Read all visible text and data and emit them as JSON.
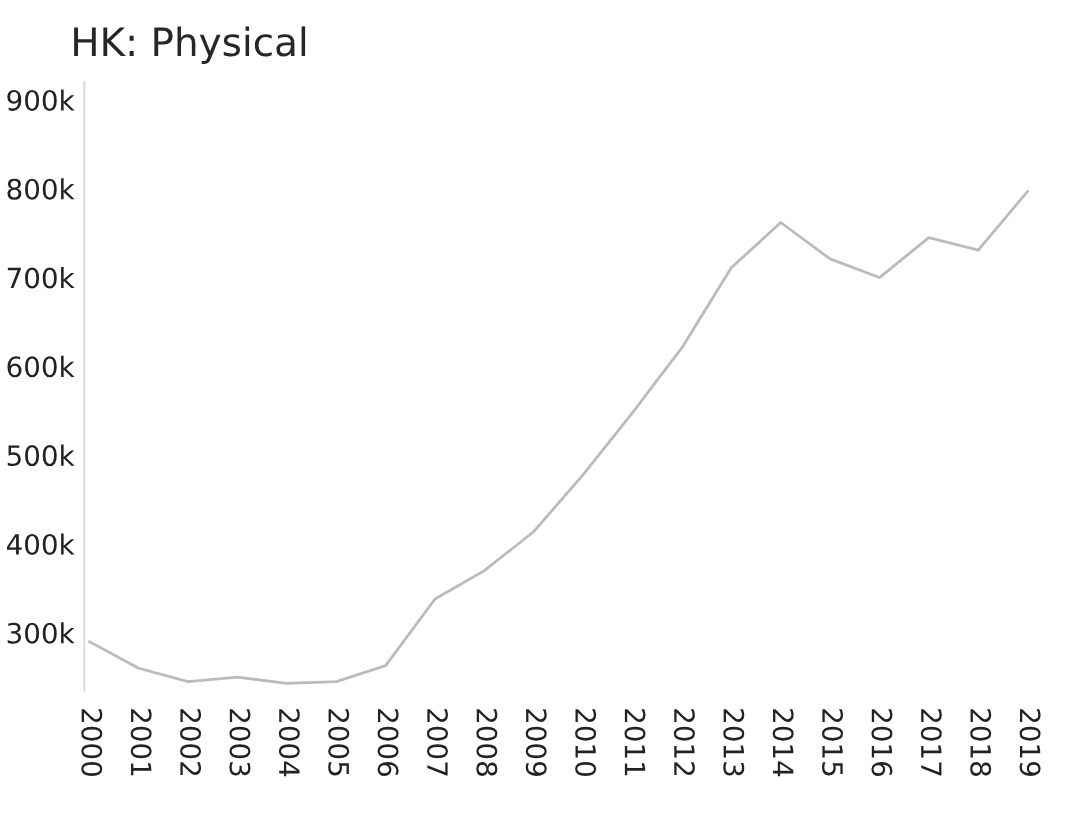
{
  "chart_data": {
    "type": "line",
    "title": "HK: Physical",
    "categories": [
      "2000",
      "2001",
      "2002",
      "2003",
      "2004",
      "2005",
      "2006",
      "2007",
      "2008",
      "2009",
      "2010",
      "2011",
      "2012",
      "2013",
      "2014",
      "2015",
      "2016",
      "2017",
      "2018",
      "2019"
    ],
    "series": [
      {
        "color": "#bbbbbb",
        "values": [
          290000,
          260000,
          245000,
          250000,
          243000,
          245000,
          263000,
          338000,
          370000,
          414000,
          478000,
          548000,
          621000,
          711000,
          762000,
          721000,
          700000,
          745000,
          731000,
          797000
        ]
      }
    ],
    "ylim": [
      235000,
      920000
    ],
    "yticks": [
      {
        "value": 300000,
        "label": "300k"
      },
      {
        "value": 400000,
        "label": "400k"
      },
      {
        "value": 500000,
        "label": "500k"
      },
      {
        "value": 600000,
        "label": "600k"
      },
      {
        "value": 700000,
        "label": "700k"
      },
      {
        "value": 800000,
        "label": "800k"
      },
      {
        "value": 900000,
        "label": "900k"
      }
    ],
    "grid": false,
    "legend": false,
    "marker": "none",
    "line_style": "solid"
  }
}
